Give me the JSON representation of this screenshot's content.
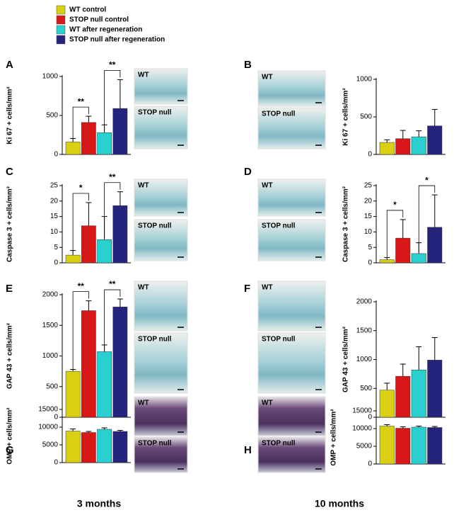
{
  "legend": {
    "names": [
      "WT control",
      "STOP null control",
      "WT after regeneration",
      "STOP null after regeneration"
    ],
    "colors": [
      "#d8d010",
      "#d81818",
      "#28d0d0",
      "#24247c"
    ]
  },
  "columns": [
    "3 months",
    "10 months"
  ],
  "chart_data": [
    {
      "type": "bar",
      "panel": "A",
      "ylabel": "Ki 67 + cells/mm²",
      "values": [
        160,
        410,
        280,
        590
      ],
      "errors": [
        45,
        80,
        100,
        370
      ],
      "ylim": [
        0,
        1000
      ],
      "yticks": [
        0,
        500,
        1000
      ],
      "annotations": [
        "**",
        "**"
      ],
      "image_labels": [
        "WT",
        "STOP null"
      ]
    },
    {
      "type": "bar",
      "panel": "B",
      "ylabel": "Ki 67 + cells/mm²",
      "values": [
        160,
        210,
        235,
        380
      ],
      "errors": [
        35,
        110,
        80,
        220
      ],
      "ylim": [
        0,
        1000
      ],
      "yticks": [
        0,
        500,
        1000
      ],
      "annotations": [],
      "image_labels": [
        "WT",
        "STOP null"
      ]
    },
    {
      "type": "bar",
      "panel": "C",
      "ylabel": "Caspase 3 + cells/mm²",
      "values": [
        2.5,
        12,
        7.5,
        18.5
      ],
      "errors": [
        1.5,
        7.5,
        7.5,
        4.5
      ],
      "ylim": [
        0,
        25
      ],
      "yticks": [
        0,
        5,
        10,
        15,
        20,
        25
      ],
      "annotations": [
        "*",
        "**"
      ],
      "image_labels": [
        "WT",
        "STOP null"
      ]
    },
    {
      "type": "bar",
      "panel": "D",
      "ylabel": "Caspase 3 + cells/mm²",
      "values": [
        1,
        8,
        3,
        11.5
      ],
      "errors": [
        0.7,
        6,
        3.5,
        10.5
      ],
      "ylim": [
        0,
        25
      ],
      "yticks": [
        0,
        5,
        10,
        15,
        20,
        25
      ],
      "annotations": [
        "*",
        "*"
      ],
      "image_labels": [
        "WT",
        "STOP null"
      ]
    },
    {
      "type": "bar",
      "panel": "E",
      "ylabel": "GAP 43 + cells/mm²",
      "values": [
        750,
        1740,
        1070,
        1800
      ],
      "errors": [
        30,
        160,
        110,
        130
      ],
      "ylim": [
        0,
        2000
      ],
      "yticks": [
        0,
        500,
        1000,
        1500,
        2000
      ],
      "annotations": [
        "**",
        "**"
      ],
      "image_labels": [
        "WT",
        "STOP null"
      ]
    },
    {
      "type": "bar",
      "panel": "F",
      "ylabel": "GAP 43 + cells/mm²",
      "values": [
        470,
        710,
        820,
        990
      ],
      "errors": [
        120,
        210,
        400,
        390
      ],
      "ylim": [
        0,
        2000
      ],
      "yticks": [
        0,
        500,
        1000,
        1500,
        2000
      ],
      "annotations": [],
      "image_labels": [
        "WT",
        "STOP null"
      ]
    },
    {
      "type": "bar",
      "panel": "G",
      "ylabel": "OMP + cells/mm²",
      "values": [
        8900,
        8500,
        9400,
        8800
      ],
      "errors": [
        600,
        300,
        400,
        300
      ],
      "ylim": [
        0,
        15000
      ],
      "yticks": [
        0,
        5000,
        10000,
        15000
      ],
      "annotations": [],
      "image_labels": [
        "WT",
        "STOP null"
      ]
    },
    {
      "type": "bar",
      "panel": "H",
      "ylabel": "OMP + cells/mm²",
      "values": [
        10700,
        10100,
        10400,
        10300
      ],
      "errors": [
        400,
        400,
        300,
        300
      ],
      "ylim": [
        0,
        15000
      ],
      "yticks": [
        0,
        5000,
        10000,
        15000
      ],
      "annotations": [],
      "image_labels": [
        "WT",
        "STOP null"
      ]
    }
  ]
}
